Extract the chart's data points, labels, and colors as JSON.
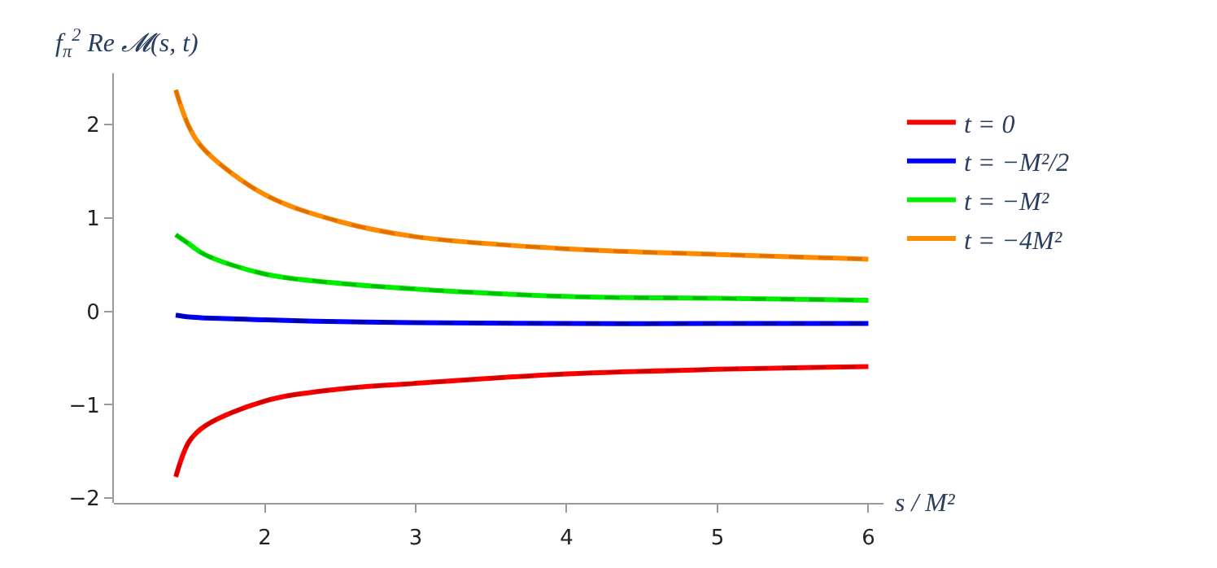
{
  "chart_data": {
    "type": "line",
    "xlabel": "s / M²",
    "ylabel": "f$_{π}$$^{2}$ Re 𝓜(s, t)",
    "x": [
      1.41,
      1.5,
      1.6,
      2,
      2.5,
      3,
      4,
      5,
      6
    ],
    "series": [
      {
        "name": "t = 0",
        "color": "#ff0000",
        "values": [
          -1.77,
          -1.39,
          -1.23,
          -0.96,
          -0.83,
          -0.77,
          -0.67,
          -0.62,
          -0.59
        ]
      },
      {
        "name": "t = −M²/2",
        "color": "#0000ff",
        "values": [
          -0.04,
          -0.06,
          -0.07,
          -0.09,
          -0.11,
          -0.12,
          -0.13,
          -0.13,
          -0.13
        ]
      },
      {
        "name": "t = −M²",
        "color": "#00ee00",
        "values": [
          0.82,
          0.72,
          0.61,
          0.4,
          0.3,
          0.24,
          0.16,
          0.14,
          0.12
        ]
      },
      {
        "name": "t = −4M²",
        "color": "#ff8c00",
        "values": [
          2.37,
          1.97,
          1.73,
          1.25,
          0.96,
          0.8,
          0.67,
          0.61,
          0.56
        ]
      },
      {
        "color": "#cc0000",
        "line_style": "dashed",
        "values": [
          -1.77,
          -1.39,
          -1.23,
          -0.96,
          -0.83,
          -0.77,
          -0.67,
          -0.62,
          -0.59
        ]
      },
      {
        "color": "#0000aa",
        "line_style": "dashed",
        "values": [
          -0.04,
          -0.06,
          -0.07,
          -0.09,
          -0.11,
          -0.12,
          -0.13,
          -0.13,
          -0.13
        ]
      },
      {
        "color": "#00bb00",
        "line_style": "dashed",
        "values": [
          0.82,
          0.72,
          0.61,
          0.4,
          0.3,
          0.24,
          0.16,
          0.14,
          0.12
        ]
      },
      {
        "color": "#dd7000",
        "line_style": "dashed",
        "values": [
          2.37,
          1.97,
          1.73,
          1.25,
          0.96,
          0.8,
          0.67,
          0.61,
          0.56
        ]
      }
    ],
    "xlim": [
      1.0,
      6.1
    ],
    "ylim": [
      -2.05,
      2.55
    ],
    "xticks": [
      2,
      3,
      4,
      5,
      6
    ],
    "yticks": [
      -2,
      -1,
      0,
      1,
      2
    ],
    "legend": "right",
    "line_style": "solid",
    "marker": "none"
  }
}
